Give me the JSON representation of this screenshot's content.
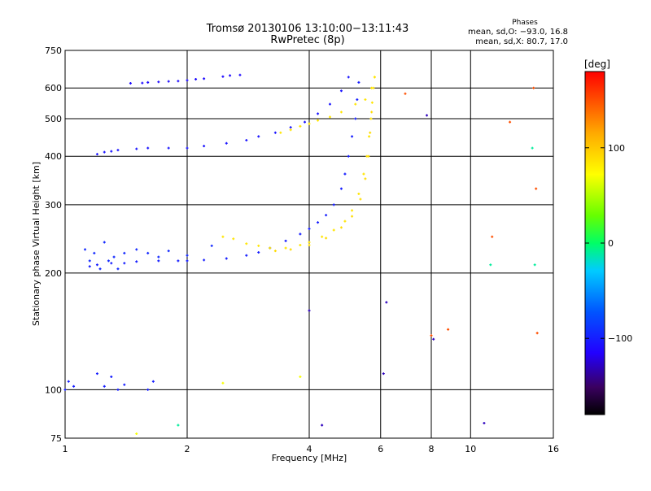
{
  "chart_data": {
    "type": "scatter",
    "title": "Tromsø 20130106 13:10:00−13:11:43",
    "subtitle": "RwPretec (8p)",
    "xlabel": "Frequency [MHz]",
    "ylabel": "Stationary phase Virtual Height [km]",
    "x_scale": "log",
    "y_scale": "log",
    "xlim": [
      1,
      16
    ],
    "ylim": [
      75,
      750
    ],
    "x_ticks": [
      1,
      2,
      4,
      6,
      8,
      10,
      16
    ],
    "x_tick_labels": [
      "1",
      "2",
      "4",
      "6",
      "8",
      "10",
      "16"
    ],
    "y_ticks": [
      75,
      100,
      200,
      300,
      400,
      500,
      600,
      750
    ],
    "y_tick_labels": [
      "75",
      "100",
      "200",
      "300",
      "400",
      "500",
      "600",
      "750"
    ],
    "grid": true,
    "stats": {
      "title": "Phases",
      "line1": "mean, sd,O: −93.0, 16.8",
      "line2": "mean, sd,X:  80.7, 17.0"
    },
    "colorbar": {
      "label": "[deg]",
      "min": -180,
      "max": 180,
      "tick_values": [
        100,
        0,
        -100
      ],
      "tick_labels": [
        "100",
        "0",
        "−100"
      ]
    },
    "traces": [
      {
        "name": "",
        "phase": -110,
        "points": [
          [
            1.45,
            617
          ],
          [
            1.55,
            618
          ],
          [
            1.6,
            620
          ],
          [
            1.7,
            622
          ],
          [
            1.8,
            624
          ],
          [
            1.9,
            625
          ],
          [
            2.0,
            628
          ],
          [
            2.1,
            632
          ],
          [
            2.2,
            634
          ],
          [
            2.45,
            642
          ],
          [
            2.55,
            646
          ],
          [
            2.7,
            648
          ]
        ]
      },
      {
        "name": "",
        "phase": -105,
        "points": [
          [
            1.2,
            405
          ],
          [
            1.25,
            410
          ],
          [
            1.3,
            412
          ],
          [
            1.35,
            415
          ],
          [
            1.5,
            418
          ],
          [
            1.6,
            420
          ],
          [
            1.8,
            420
          ],
          [
            2.0,
            420
          ],
          [
            2.2,
            425
          ],
          [
            2.5,
            432
          ],
          [
            2.8,
            440
          ],
          [
            3.0,
            450
          ],
          [
            3.3,
            460
          ],
          [
            3.6,
            475
          ],
          [
            3.9,
            490
          ],
          [
            4.2,
            515
          ],
          [
            4.5,
            545
          ],
          [
            4.8,
            590
          ],
          [
            5.0,
            640
          ]
        ]
      },
      {
        "name": "",
        "phase": -100,
        "points": [
          [
            1.15,
            208
          ],
          [
            1.2,
            210
          ],
          [
            1.3,
            212
          ],
          [
            1.4,
            212
          ],
          [
            1.5,
            214
          ],
          [
            1.7,
            215
          ],
          [
            1.9,
            215
          ],
          [
            2.0,
            215
          ],
          [
            2.2,
            216
          ],
          [
            2.5,
            218
          ],
          [
            2.8,
            222
          ],
          [
            3.0,
            226
          ],
          [
            3.2,
            232
          ],
          [
            3.5,
            242
          ],
          [
            3.8,
            252
          ],
          [
            4.0,
            260
          ],
          [
            4.2,
            270
          ],
          [
            4.4,
            282
          ],
          [
            4.6,
            300
          ],
          [
            4.8,
            330
          ],
          [
            4.9,
            360
          ],
          [
            5.0,
            400
          ],
          [
            5.1,
            450
          ],
          [
            5.2,
            500
          ],
          [
            5.25,
            560
          ],
          [
            5.3,
            620
          ]
        ]
      },
      {
        "name": "",
        "phase": -95,
        "points": [
          [
            1.12,
            230
          ],
          [
            1.15,
            215
          ],
          [
            1.18,
            225
          ],
          [
            1.22,
            205
          ],
          [
            1.25,
            240
          ],
          [
            1.28,
            215
          ],
          [
            1.32,
            220
          ],
          [
            1.35,
            205
          ],
          [
            1.4,
            225
          ],
          [
            1.5,
            230
          ],
          [
            1.6,
            225
          ],
          [
            1.7,
            220
          ],
          [
            1.8,
            228
          ],
          [
            2.0,
            222
          ],
          [
            2.3,
            235
          ]
        ]
      },
      {
        "name": "",
        "phase": -100,
        "points": [
          [
            1.0,
            100
          ],
          [
            1.02,
            105
          ],
          [
            1.05,
            102
          ],
          [
            1.2,
            110
          ],
          [
            1.25,
            102
          ],
          [
            1.3,
            108
          ],
          [
            1.35,
            100
          ],
          [
            1.4,
            103
          ],
          [
            1.6,
            100
          ],
          [
            1.65,
            105
          ]
        ]
      },
      {
        "name": "",
        "phase": 85,
        "points": [
          [
            3.4,
            460
          ],
          [
            3.6,
            468
          ],
          [
            3.8,
            478
          ],
          [
            4.0,
            485
          ],
          [
            4.2,
            495
          ],
          [
            4.5,
            505
          ],
          [
            4.8,
            520
          ],
          [
            5.2,
            545
          ],
          [
            5.5,
            560
          ],
          [
            5.7,
            600
          ],
          [
            5.8,
            640
          ]
        ]
      },
      {
        "name": "",
        "phase": 85,
        "points": [
          [
            2.45,
            248
          ],
          [
            2.6,
            245
          ],
          [
            2.8,
            238
          ],
          [
            3.0,
            235
          ],
          [
            3.2,
            232
          ],
          [
            3.5,
            232
          ],
          [
            3.8,
            236
          ],
          [
            4.0,
            240
          ],
          [
            4.3,
            248
          ],
          [
            4.6,
            258
          ],
          [
            4.9,
            272
          ],
          [
            5.1,
            290
          ],
          [
            5.3,
            320
          ],
          [
            5.45,
            360
          ],
          [
            5.55,
            400
          ],
          [
            5.62,
            450
          ],
          [
            5.68,
            500
          ],
          [
            5.72,
            550
          ],
          [
            5.76,
            600
          ],
          [
            5.8,
            640
          ]
        ]
      },
      {
        "name": "",
        "phase": 90,
        "points": [
          [
            3.3,
            228
          ],
          [
            3.6,
            230
          ],
          [
            4.0,
            236
          ],
          [
            4.4,
            246
          ],
          [
            4.8,
            262
          ],
          [
            5.1,
            280
          ],
          [
            5.35,
            310
          ],
          [
            5.5,
            350
          ],
          [
            5.6,
            400
          ],
          [
            5.65,
            460
          ],
          [
            5.7,
            520
          ]
        ]
      },
      {
        "name": "",
        "phase": 70,
        "points": [
          [
            1.5,
            77
          ],
          [
            2.45,
            104
          ],
          [
            3.8,
            108
          ]
        ]
      },
      {
        "name": "",
        "phase": 150,
        "points": [
          [
            6.9,
            580
          ],
          [
            8.0,
            138
          ],
          [
            8.8,
            143
          ],
          [
            11.3,
            248
          ],
          [
            12.5,
            490
          ],
          [
            14.3,
            600
          ],
          [
            14.5,
            330
          ],
          [
            14.6,
            140
          ]
        ]
      },
      {
        "name": "",
        "phase": -130,
        "points": [
          [
            4.0,
            160
          ],
          [
            4.3,
            81
          ],
          [
            6.1,
            110
          ],
          [
            6.2,
            168
          ],
          [
            7.8,
            510
          ],
          [
            8.1,
            135
          ],
          [
            10.8,
            82
          ]
        ]
      },
      {
        "name": "",
        "phase": -10,
        "points": [
          [
            1.9,
            81
          ],
          [
            11.2,
            210
          ],
          [
            14.4,
            210
          ],
          [
            14.2,
            420
          ]
        ]
      }
    ]
  }
}
